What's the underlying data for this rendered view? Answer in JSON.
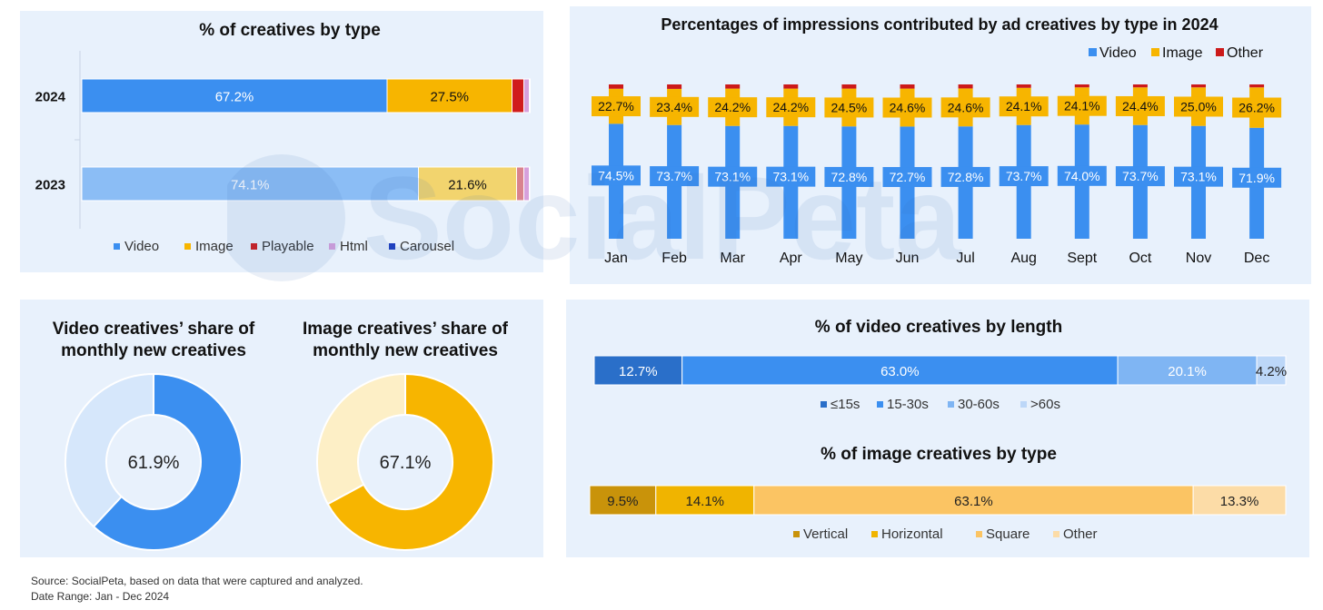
{
  "colors": {
    "panel_bg": "#e8f1fc",
    "video": "#3b8ff0",
    "video_light": "#8bbdf5",
    "image": "#f7b500",
    "image_light": "#f2d46e",
    "playable": "#d01c1c",
    "playable_light": "#d9838e",
    "html": "#d7a1dc",
    "carousel": "#1f3fbf",
    "other": "#cc1a1a"
  },
  "watermark": "SocialPeta",
  "source": {
    "line1": "Source: SocialPeta, based on data that were captured and analyzed.",
    "line2": "Date Range: Jan - Dec 2024"
  },
  "chart_data": [
    {
      "id": "creatives_by_type",
      "type": "bar",
      "orientation": "horizontal-stacked",
      "title": "% of creatives by type",
      "categories": [
        "2024",
        "2023"
      ],
      "series": [
        {
          "name": "Video",
          "values": [
            67.2,
            74.1
          ],
          "labels": [
            "67.2%",
            "74.1%"
          ]
        },
        {
          "name": "Image",
          "values": [
            27.5,
            21.6
          ],
          "labels": [
            "27.5%",
            "21.6%"
          ]
        },
        {
          "name": "Playable",
          "values": [
            2.6,
            1.6
          ],
          "labels": [
            "",
            ""
          ]
        },
        {
          "name": "Html",
          "values": [
            1.2,
            1.2
          ],
          "labels": [
            "",
            ""
          ]
        },
        {
          "name": "Carousel",
          "values": [
            0.2,
            0.1
          ],
          "labels": [
            "",
            ""
          ]
        }
      ],
      "legend": [
        "Video",
        "Image",
        "Playable",
        "Html",
        "Carousel"
      ],
      "legend_position": "bottom"
    },
    {
      "id": "impressions_by_type_2024",
      "type": "bar",
      "orientation": "vertical-stacked",
      "title": "Percentages of impressions contributed by ad creatives by type in 2024",
      "categories": [
        "Jan",
        "Feb",
        "Mar",
        "Apr",
        "May",
        "Jun",
        "Jul",
        "Aug",
        "Sept",
        "Oct",
        "Nov",
        "Dec"
      ],
      "series": [
        {
          "name": "Video",
          "values": [
            74.5,
            73.7,
            73.1,
            73.1,
            72.8,
            72.7,
            72.8,
            73.7,
            74.0,
            73.7,
            73.1,
            71.9
          ],
          "labels": [
            "74.5%",
            "73.7%",
            "73.1%",
            "73.1%",
            "72.8%",
            "72.7%",
            "72.8%",
            "73.7%",
            "74.0%",
            "73.7%",
            "73.1%",
            "71.9%"
          ]
        },
        {
          "name": "Image",
          "values": [
            22.7,
            23.4,
            24.2,
            24.2,
            24.5,
            24.6,
            24.6,
            24.1,
            24.1,
            24.4,
            25.0,
            26.2
          ],
          "labels": [
            "22.7%",
            "23.4%",
            "24.2%",
            "24.2%",
            "24.5%",
            "24.6%",
            "24.6%",
            "24.1%",
            "24.1%",
            "24.4%",
            "25.0%",
            "26.2%"
          ]
        },
        {
          "name": "Other",
          "values": [
            2.8,
            2.9,
            2.7,
            2.7,
            2.7,
            2.7,
            2.6,
            2.2,
            1.9,
            1.9,
            1.9,
            1.9
          ],
          "labels": []
        }
      ],
      "legend": [
        "Video",
        "Image",
        "Other"
      ],
      "legend_position": "top-right"
    },
    {
      "id": "video_share_monthly_new",
      "type": "pie",
      "variant": "donut",
      "title": "Video creatives’ share of monthly new creatives",
      "center_label": "61.9%",
      "slices": [
        {
          "value": 61.9
        },
        {
          "value": 38.1
        }
      ]
    },
    {
      "id": "image_share_monthly_new",
      "type": "pie",
      "variant": "donut",
      "title": "Image creatives’ share of monthly new creatives",
      "center_label": "67.1%",
      "slices": [
        {
          "value": 67.1
        },
        {
          "value": 32.9
        }
      ]
    },
    {
      "id": "video_by_length",
      "type": "bar",
      "orientation": "horizontal-stacked",
      "title": "% of video creatives by length",
      "categories": [
        ""
      ],
      "series": [
        {
          "name": "≤15s",
          "values": [
            12.7
          ],
          "label": "12.7%",
          "color": "#2a6fc9"
        },
        {
          "name": "15-30s",
          "values": [
            63.0
          ],
          "label": "63.0%",
          "color": "#3b8ff0"
        },
        {
          "name": "30-60s",
          "values": [
            20.1
          ],
          "label": "20.1%",
          "color": "#7fb5f3"
        },
        {
          "name": ">60s",
          "values": [
            4.2
          ],
          "label": "4.2%",
          "color": "#bcd7f8"
        }
      ],
      "legend_position": "bottom"
    },
    {
      "id": "image_by_type",
      "type": "bar",
      "orientation": "horizontal-stacked",
      "title": "% of image creatives by type",
      "categories": [
        ""
      ],
      "series": [
        {
          "name": "Vertical",
          "values": [
            9.5
          ],
          "label": "9.5%",
          "color": "#c9930a"
        },
        {
          "name": "Horizontal",
          "values": [
            14.1
          ],
          "label": "14.1%",
          "color": "#f0b400"
        },
        {
          "name": "Square",
          "values": [
            63.1
          ],
          "label": "63.1%",
          "color": "#fbc463"
        },
        {
          "name": "Other",
          "values": [
            13.3
          ],
          "label": "13.3%",
          "color": "#fcdca7"
        }
      ],
      "legend_position": "bottom"
    }
  ]
}
